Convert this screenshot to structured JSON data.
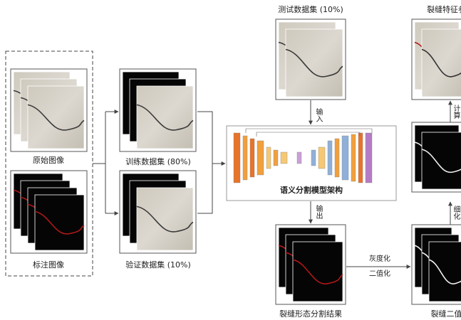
{
  "nodes": [
    {
      "label": "原始图像"
    },
    {
      "label": "标注图像"
    },
    {
      "label": "训练数据集 (80%)"
    },
    {
      "label": "验证数据集 (10%)"
    },
    {
      "label": "测试数据集 (10%)"
    },
    {
      "label": "语义分割模型架构"
    },
    {
      "label": "裂缝形态分割结果"
    },
    {
      "label": "裂缝二值图"
    },
    {
      "label": "裂缝特征参数"
    }
  ],
  "edges": [
    {
      "label": "输入"
    },
    {
      "label": "输出"
    },
    {
      "label": "灰度化"
    },
    {
      "label": "二值化"
    },
    {
      "label": "细化"
    },
    {
      "label": "计算"
    }
  ]
}
